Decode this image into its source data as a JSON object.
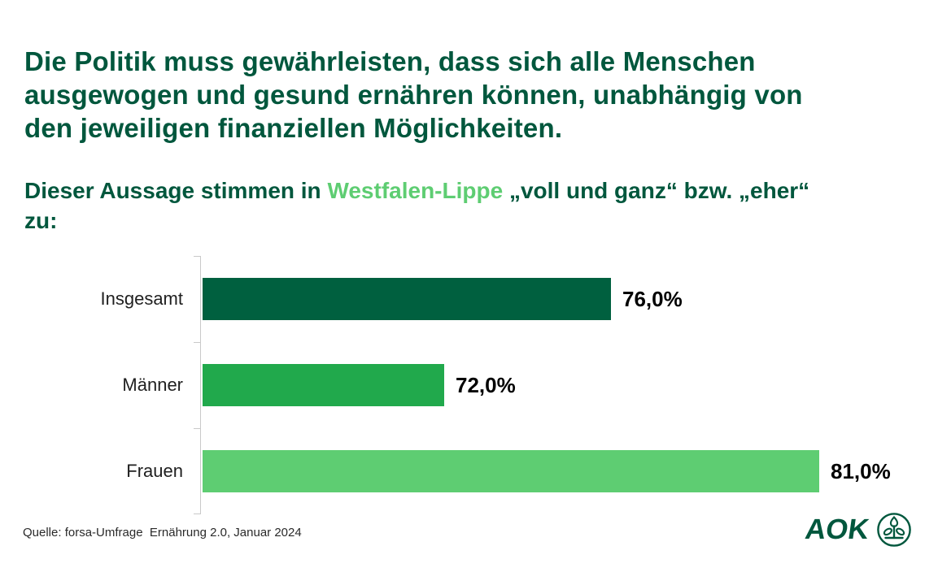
{
  "page": {
    "background": "#ffffff"
  },
  "header": {
    "title_lines": [
      "Die Politik muss gewährleisten, dass sich alle Menschen",
      "ausgewogen und gesund ernähren können, unabhängig von",
      "den jeweiligen finanziellen Möglichkeiten."
    ],
    "title_color": "#00573D",
    "subtitle": {
      "prefix": "Dieser Aussage stimmen in ",
      "region": "Westfalen-Lippe",
      "suffix": " „voll und ganz“ bzw. „eher“",
      "line2": "zu:",
      "region_color": "#5ECD72"
    }
  },
  "chart_data": {
    "type": "bar",
    "orientation": "horizontal",
    "categories": [
      "Insgesamt",
      "Männer",
      "Frauen"
    ],
    "values": [
      76.0,
      72.0,
      81.0
    ],
    "value_labels": [
      "76,0%",
      "72,0%",
      "81,0%"
    ],
    "bar_colors": [
      "#00603F",
      "#21A94C",
      "#5ECD72"
    ],
    "title": "Die Politik muss gewährleisten, dass sich alle Menschen ausgewogen und gesund ernähren können, unabhängig von den jeweiligen finanziellen Möglichkeiten.",
    "subtitle": "Dieser Aussage stimmen in Westfalen-Lippe „voll und ganz“ bzw. „eher“ zu:",
    "xlabel": "",
    "ylabel": "",
    "grid": false,
    "legend": false,
    "x_axis_labels_visible": false,
    "x_axis_range_estimate": [
      66.2,
      83.0
    ],
    "axis_color": "#C9C9C9"
  },
  "footer": {
    "source": "Quelle: forsa-Umfrage  Ernährung 2.0, Januar 2024",
    "logo": {
      "text": "AOK",
      "color": "#00573D"
    }
  }
}
